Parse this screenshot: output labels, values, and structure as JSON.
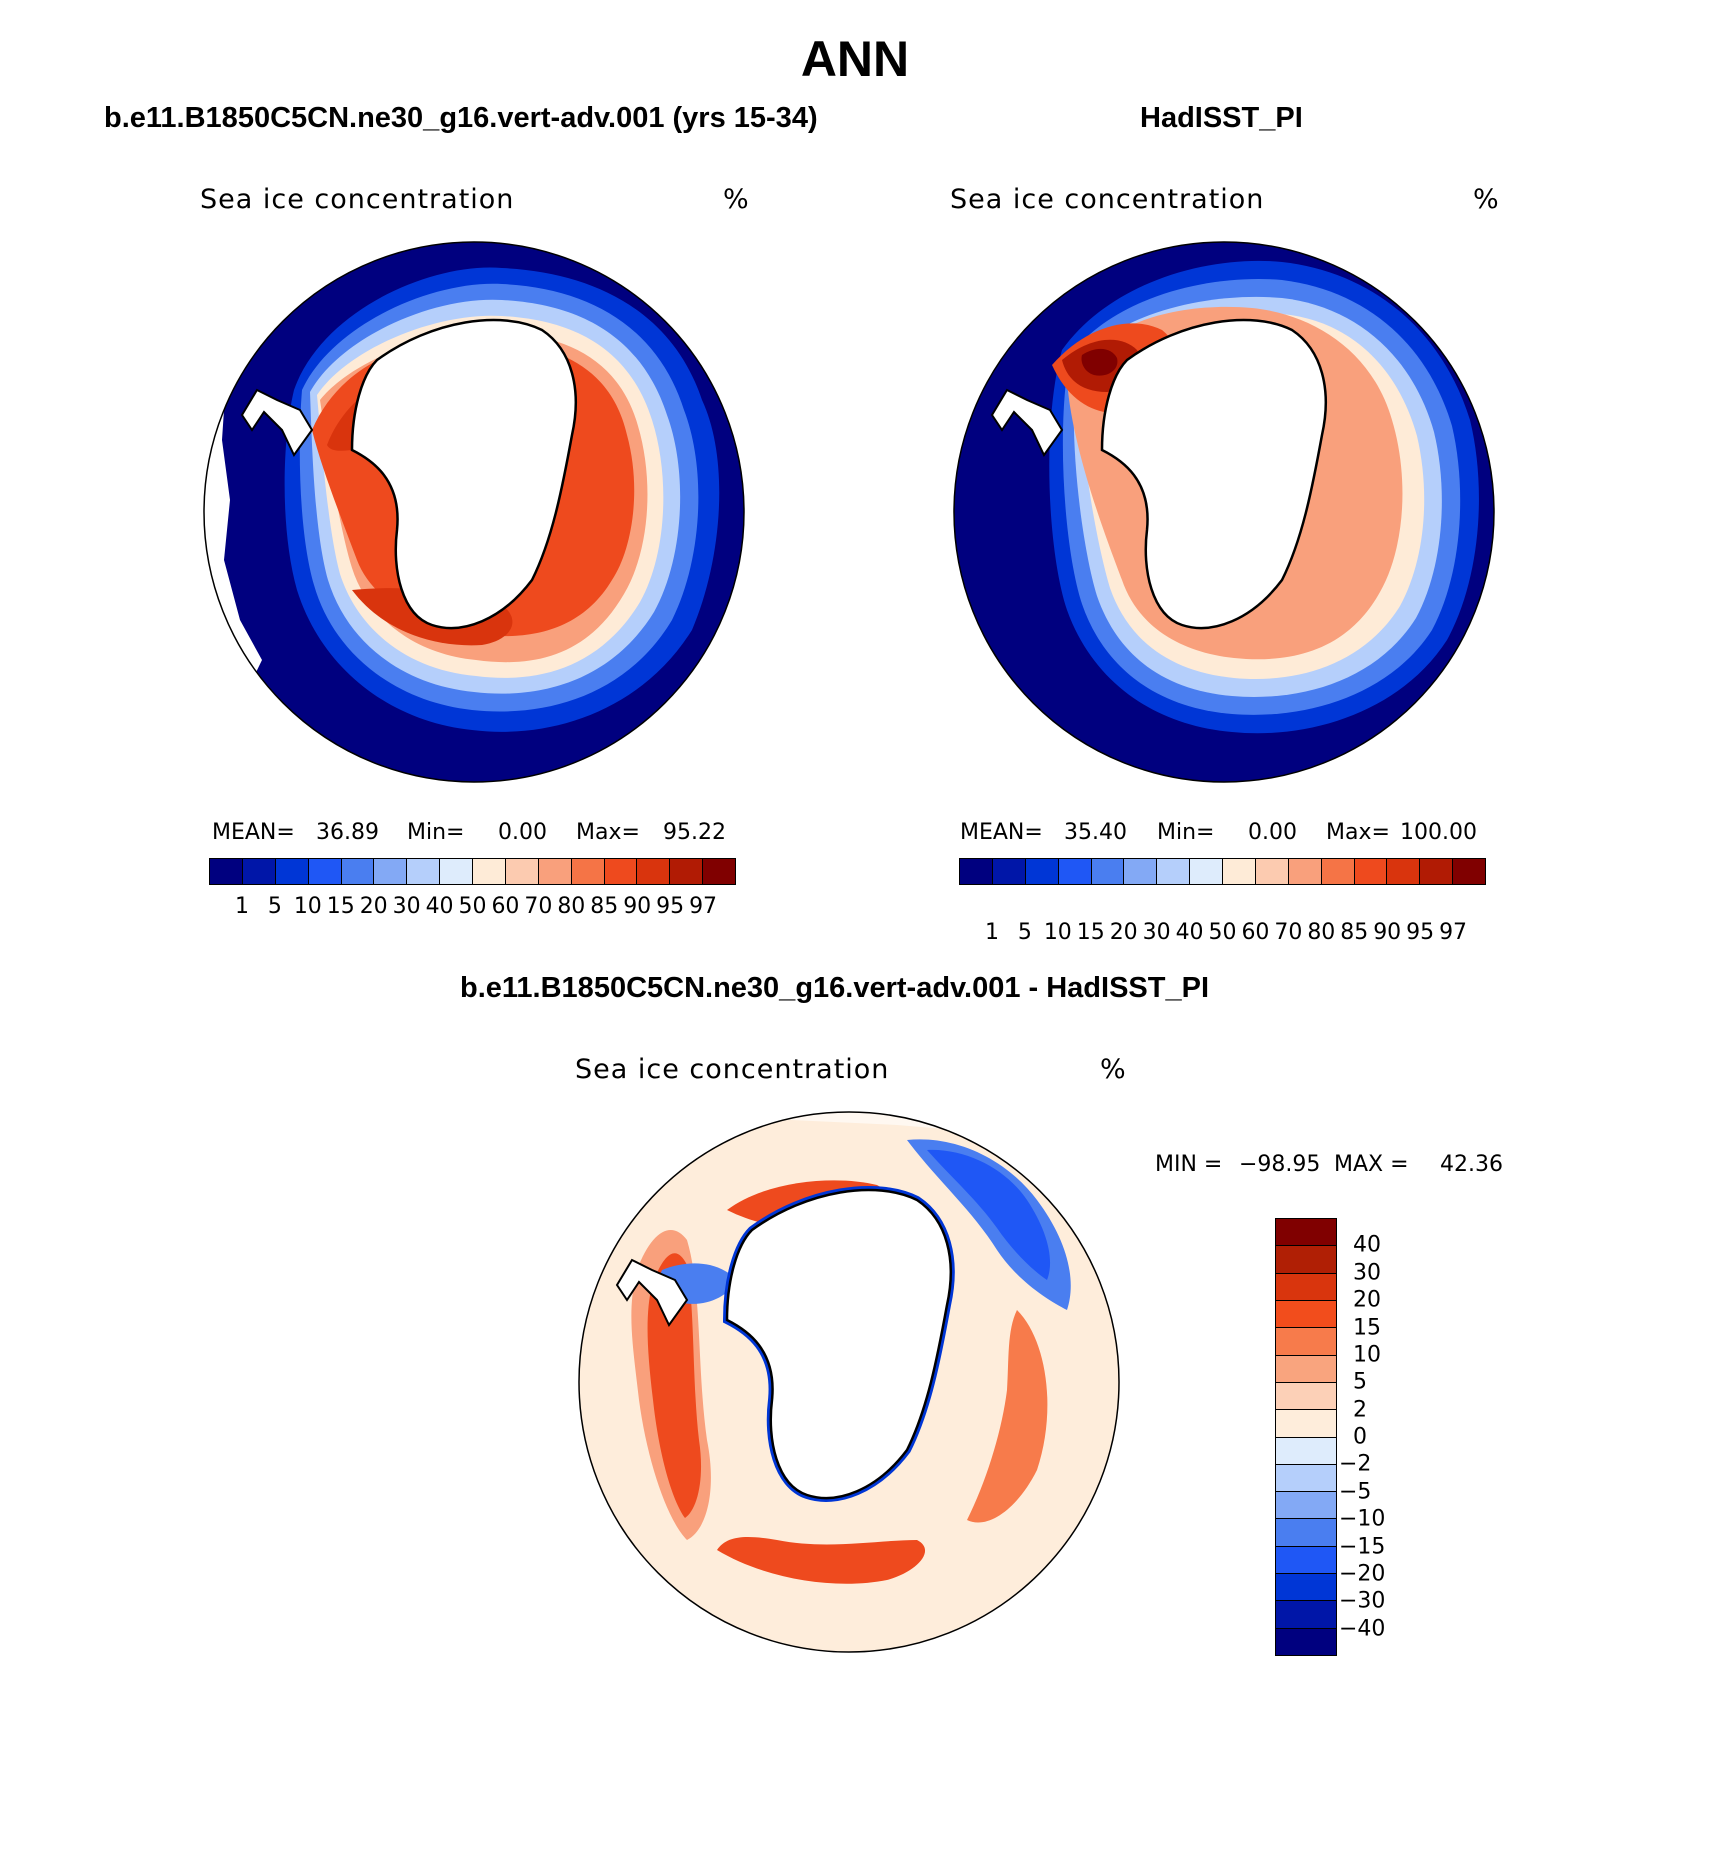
{
  "title": "ANN",
  "units": "%",
  "colors": {
    "scale": [
      "#00007f",
      "#0016a8",
      "#0036d6",
      "#1f57f5",
      "#4a7ef0",
      "#83a9f5",
      "#b5cffb",
      "#deecfc",
      "#feebd7",
      "#fccbb0",
      "#f9a07c",
      "#f57446",
      "#ee4a1e",
      "#d9340d",
      "#b11b04",
      "#800000"
    ],
    "diff_scale": [
      "#800000",
      "#b01f05",
      "#d9350d",
      "#f24d1c",
      "#f77b4b",
      "#f9a47e",
      "#fcd0b7",
      "#feeddb",
      "#deecfc",
      "#b5cffb",
      "#83a9f5",
      "#4a7ef0",
      "#1f57f5",
      "#0036d6",
      "#0016a8",
      "#00007f"
    ],
    "land": "#ffffff",
    "coast": "#000000"
  },
  "panels": [
    {
      "id": "model",
      "case_title": "b.e11.B1850C5CN.ne30_g16.vert-adv.001 (yrs 15-34)",
      "variable": "Sea ice concentration",
      "units": "%",
      "mean_label": "MEAN=",
      "mean": "36.89",
      "min_label": "Min=",
      "min": "0.00",
      "max_label": "Max=",
      "max": "95.22",
      "levels": [
        "1",
        "5",
        "10",
        "15",
        "20",
        "30",
        "40",
        "50",
        "60",
        "70",
        "80",
        "85",
        "90",
        "95",
        "97"
      ]
    },
    {
      "id": "obs",
      "case_title": "HadISST_PI",
      "variable": "Sea ice concentration",
      "units": "%",
      "mean_label": "MEAN=",
      "mean": "35.40",
      "min_label": "Min=",
      "min": "0.00",
      "max_label": "Max=",
      "max": "100.00",
      "levels": [
        "1",
        "5",
        "10",
        "15",
        "20",
        "30",
        "40",
        "50",
        "60",
        "70",
        "80",
        "85",
        "90",
        "95",
        "97"
      ]
    }
  ],
  "diff": {
    "case_title": "b.e11.B1850C5CN.ne30_g16.vert-adv.001 - HadISST_PI",
    "variable": "Sea ice concentration",
    "units": "%",
    "min_label": "MIN =",
    "min": "−98.95",
    "max_label": "MAX =",
    "max": "42.36",
    "levels": [
      "40",
      "30",
      "20",
      "15",
      "10",
      "5",
      "2",
      "0",
      "−2",
      "−5",
      "−10",
      "−15",
      "−20",
      "−30",
      "−40"
    ]
  }
}
